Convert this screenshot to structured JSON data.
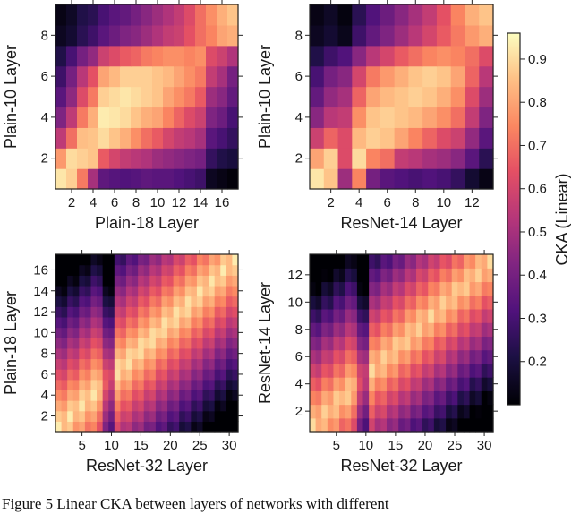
{
  "caption": "Figure 5 Linear CKA between layers of networks with different",
  "colorbar": {
    "label": "CKA (Linear)",
    "range": [
      0.1,
      0.96
    ],
    "ticks": [
      0.2,
      0.3,
      0.4,
      0.5,
      0.6,
      0.7,
      0.8,
      0.9
    ],
    "colormap": "magma"
  },
  "chart_data": [
    {
      "type": "heatmap",
      "xlabel": "Plain-18 Layer",
      "ylabel": "Plain-10 Layer",
      "nx": 17,
      "ny": 9,
      "xticks": [
        2,
        4,
        6,
        8,
        10,
        12,
        14,
        16
      ],
      "yticks": [
        2,
        4,
        6,
        8
      ],
      "values": [
        [
          0.92,
          0.88,
          0.72,
          0.5,
          0.35,
          0.33,
          0.32,
          0.33,
          0.35,
          0.34,
          0.34,
          0.32,
          0.3,
          0.28,
          0.15,
          0.13,
          0.11
        ],
        [
          0.78,
          0.9,
          0.88,
          0.86,
          0.66,
          0.6,
          0.56,
          0.54,
          0.52,
          0.48,
          0.46,
          0.44,
          0.42,
          0.4,
          0.26,
          0.22,
          0.2
        ],
        [
          0.55,
          0.7,
          0.85,
          0.86,
          0.9,
          0.86,
          0.82,
          0.76,
          0.7,
          0.66,
          0.6,
          0.56,
          0.54,
          0.5,
          0.34,
          0.3,
          0.26
        ],
        [
          0.42,
          0.55,
          0.72,
          0.82,
          0.93,
          0.92,
          0.9,
          0.86,
          0.82,
          0.8,
          0.74,
          0.68,
          0.62,
          0.58,
          0.42,
          0.38,
          0.3
        ],
        [
          0.34,
          0.45,
          0.62,
          0.72,
          0.88,
          0.9,
          0.92,
          0.9,
          0.88,
          0.86,
          0.8,
          0.76,
          0.72,
          0.66,
          0.48,
          0.44,
          0.36
        ],
        [
          0.28,
          0.4,
          0.54,
          0.64,
          0.8,
          0.84,
          0.88,
          0.88,
          0.88,
          0.86,
          0.84,
          0.8,
          0.76,
          0.72,
          0.56,
          0.5,
          0.4
        ],
        [
          0.22,
          0.3,
          0.4,
          0.46,
          0.58,
          0.62,
          0.66,
          0.68,
          0.72,
          0.74,
          0.76,
          0.76,
          0.74,
          0.76,
          0.62,
          0.58,
          0.52
        ],
        [
          0.15,
          0.18,
          0.24,
          0.28,
          0.34,
          0.38,
          0.42,
          0.44,
          0.48,
          0.52,
          0.56,
          0.58,
          0.64,
          0.7,
          0.74,
          0.8,
          0.82
        ],
        [
          0.13,
          0.16,
          0.22,
          0.24,
          0.3,
          0.34,
          0.36,
          0.4,
          0.44,
          0.48,
          0.52,
          0.56,
          0.62,
          0.7,
          0.76,
          0.82,
          0.86
        ]
      ]
    },
    {
      "type": "heatmap",
      "xlabel": "ResNet-14 Layer",
      "ylabel": "Plain-10 Layer",
      "nx": 13,
      "ny": 9,
      "xticks": [
        2,
        4,
        6,
        8,
        10,
        12
      ],
      "yticks": [
        2,
        4,
        6,
        8
      ],
      "values": [
        [
          0.92,
          0.86,
          0.48,
          0.74,
          0.4,
          0.34,
          0.32,
          0.3,
          0.32,
          0.3,
          0.26,
          0.18,
          0.13
        ],
        [
          0.8,
          0.88,
          0.62,
          0.9,
          0.74,
          0.7,
          0.56,
          0.54,
          0.5,
          0.48,
          0.44,
          0.34,
          0.24
        ],
        [
          0.58,
          0.68,
          0.62,
          0.84,
          0.88,
          0.86,
          0.8,
          0.74,
          0.68,
          0.62,
          0.58,
          0.46,
          0.34
        ],
        [
          0.44,
          0.54,
          0.56,
          0.76,
          0.86,
          0.88,
          0.86,
          0.84,
          0.8,
          0.76,
          0.7,
          0.56,
          0.42
        ],
        [
          0.36,
          0.46,
          0.5,
          0.68,
          0.8,
          0.84,
          0.86,
          0.88,
          0.86,
          0.82,
          0.76,
          0.62,
          0.48
        ],
        [
          0.3,
          0.4,
          0.44,
          0.6,
          0.72,
          0.78,
          0.82,
          0.86,
          0.88,
          0.86,
          0.8,
          0.68,
          0.54
        ],
        [
          0.22,
          0.28,
          0.32,
          0.44,
          0.54,
          0.6,
          0.66,
          0.7,
          0.74,
          0.76,
          0.74,
          0.7,
          0.62
        ],
        [
          0.15,
          0.18,
          0.14,
          0.28,
          0.36,
          0.42,
          0.48,
          0.54,
          0.6,
          0.66,
          0.72,
          0.78,
          0.82
        ],
        [
          0.13,
          0.16,
          0.12,
          0.24,
          0.32,
          0.38,
          0.44,
          0.5,
          0.56,
          0.64,
          0.74,
          0.82,
          0.86
        ]
      ]
    },
    {
      "type": "heatmap",
      "xlabel": "ResNet-32 Layer",
      "ylabel": "Plain-18 Layer",
      "nx": 31,
      "ny": 17,
      "xticks": [
        5,
        10,
        15,
        20,
        25,
        30
      ],
      "yticks": [
        2,
        4,
        6,
        8,
        10,
        12,
        14,
        16
      ],
      "values": "band:0.93:0.09"
    },
    {
      "type": "heatmap",
      "xlabel": "ResNet-32 Layer",
      "ylabel": "ResNet-14 Layer",
      "nx": 31,
      "ny": 13,
      "xticks": [
        5,
        10,
        15,
        20,
        25,
        30
      ],
      "yticks": [
        2,
        4,
        6,
        8,
        10,
        12
      ],
      "values": "band:0.90:0.09"
    }
  ]
}
